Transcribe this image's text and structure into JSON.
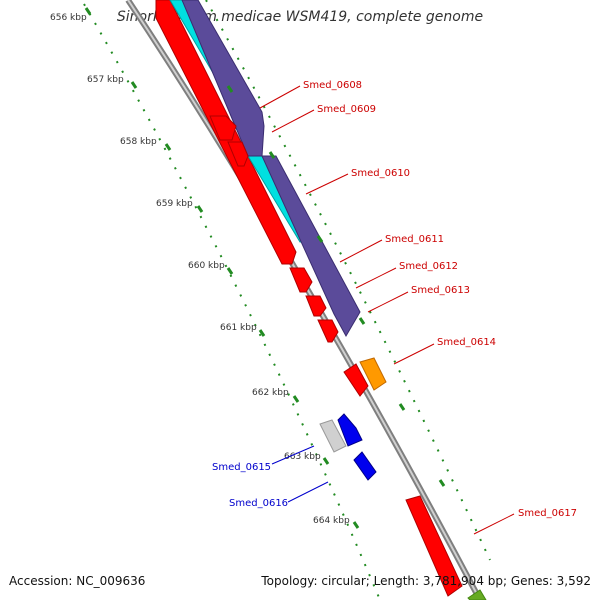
{
  "title": "Sinorhizobium medicae WSM419, complete genome",
  "footer": {
    "accession": "Accession: NC_009636",
    "summary": "Topology: circular; Length: 3,781,904 bp; Genes: 3,592"
  },
  "ruler": {
    "unit_labels": [
      "656 kbp",
      "657 kbp",
      "658 kbp",
      "659 kbp",
      "660 kbp",
      "661 kbp",
      "662 kbp",
      "663 kbp",
      "664 kbp"
    ]
  },
  "colors": {
    "forward_gene": "#ff0000",
    "reverse_gene": "#0000ee",
    "pseudo_or_other": "#c8c8c8",
    "orange_feature": "#ff9900",
    "cyan_track": "#00e0e0",
    "purple_track": "#5b4b9a",
    "backbone": "#808080",
    "tick_green": "#228b22",
    "red_label": "#cc0000",
    "blue_label": "#0000cc"
  },
  "genes": [
    {
      "label": "Smed_0608",
      "strand": "forward"
    },
    {
      "label": "Smed_0609",
      "strand": "forward"
    },
    {
      "label": "Smed_0610",
      "strand": "forward"
    },
    {
      "label": "Smed_0611",
      "strand": "forward"
    },
    {
      "label": "Smed_0612",
      "strand": "forward"
    },
    {
      "label": "Smed_0613",
      "strand": "forward"
    },
    {
      "label": "Smed_0614",
      "strand": "forward"
    },
    {
      "label": "Smed_0615",
      "strand": "reverse"
    },
    {
      "label": "Smed_0616",
      "strand": "reverse"
    },
    {
      "label": "Smed_0617",
      "strand": "forward"
    }
  ]
}
